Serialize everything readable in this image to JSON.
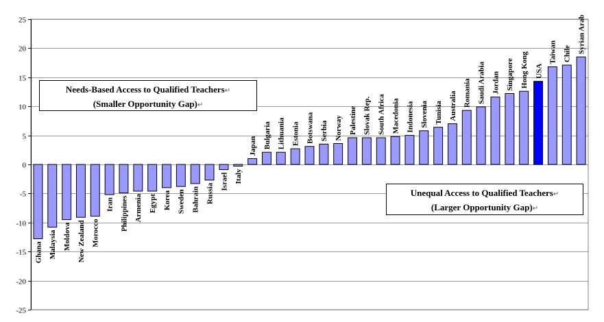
{
  "chart_data": {
    "type": "bar",
    "ylim": [
      -25,
      25
    ],
    "yticks": [
      -25,
      -20,
      -15,
      -10,
      -5,
      0,
      5,
      10,
      15,
      20,
      25
    ],
    "grid": true,
    "bar_color": "#9999ff",
    "highlight_color": "#0000ff",
    "highlight_category": "USA",
    "categories": [
      "Ghana",
      "Malaysia",
      "Moldova",
      "New Zealand",
      "Morocco",
      "Iran",
      "Philippines",
      "Armenia",
      "Egypt",
      "Korea",
      "Sweden",
      "Bahrain",
      "Russia",
      "Israel",
      "Italy",
      "Japan",
      "Bulgaria",
      "Lithuania",
      "Estonia",
      "Botswana",
      "Serbia",
      "Norway",
      "Palestine",
      "Slovak Rep.",
      "South Africa",
      "Macedonia",
      "Indonesia",
      "Slovenia",
      "Tunisia",
      "Australia",
      "Romania",
      "Saudi Arabia",
      "Jordan",
      "Singapore",
      "Hong Kong",
      "USA",
      "Taiwan",
      "Chile",
      "Syrian Arab"
    ],
    "values": [
      -12.8,
      -10.8,
      -9.5,
      -9.1,
      -8.9,
      -5.2,
      -4.9,
      -4.6,
      -4.6,
      -4.0,
      -3.8,
      -3.3,
      -2.7,
      -0.9,
      -0.3,
      1.0,
      2.1,
      2.1,
      2.7,
      3.1,
      3.5,
      3.6,
      4.6,
      4.6,
      4.6,
      4.8,
      5.0,
      5.8,
      6.4,
      7.0,
      9.3,
      9.9,
      11.6,
      12.2,
      12.6,
      14.3,
      16.8,
      17.1,
      18.5
    ],
    "annotations": [
      {
        "line1": "Needs-Based Access to Qualified Teachers",
        "line2": "(Smaller Opportunity Gap)"
      },
      {
        "line1": "Unequal Access to Qualified Teachers",
        "line2": "(Larger Opportunity Gap)"
      }
    ],
    "paragraph_mark": "↵"
  }
}
